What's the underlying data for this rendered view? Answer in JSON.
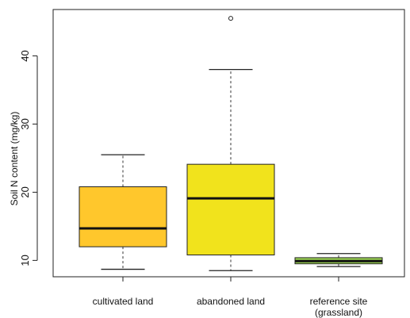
{
  "chart_data": {
    "type": "boxplot",
    "title": "",
    "xlabel": "",
    "ylabel": "Soil N content (mg/kg)",
    "ylim": [
      7.6,
      46.8
    ],
    "yticks": [
      10,
      20,
      30,
      40
    ],
    "grid": false,
    "legend": "none",
    "series": [
      {
        "label_lines": [
          "cultivated land"
        ],
        "color": "#FFC72C",
        "whisker_low": 8.7,
        "q1": 12.0,
        "median": 14.7,
        "q3": 20.8,
        "whisker_high": 25.5,
        "outliers": []
      },
      {
        "label_lines": [
          "abandoned land"
        ],
        "color": "#F1E31C",
        "whisker_low": 8.5,
        "q1": 10.8,
        "median": 19.1,
        "q3": 24.1,
        "whisker_high": 38.0,
        "outliers": [
          45.5
        ]
      },
      {
        "label_lines": [
          "reference site",
          "(grassland)"
        ],
        "color": "#9BD353",
        "whisker_low": 9.1,
        "q1": 9.5,
        "median": 9.9,
        "q3": 10.4,
        "whisker_high": 11.0,
        "outliers": []
      }
    ]
  }
}
